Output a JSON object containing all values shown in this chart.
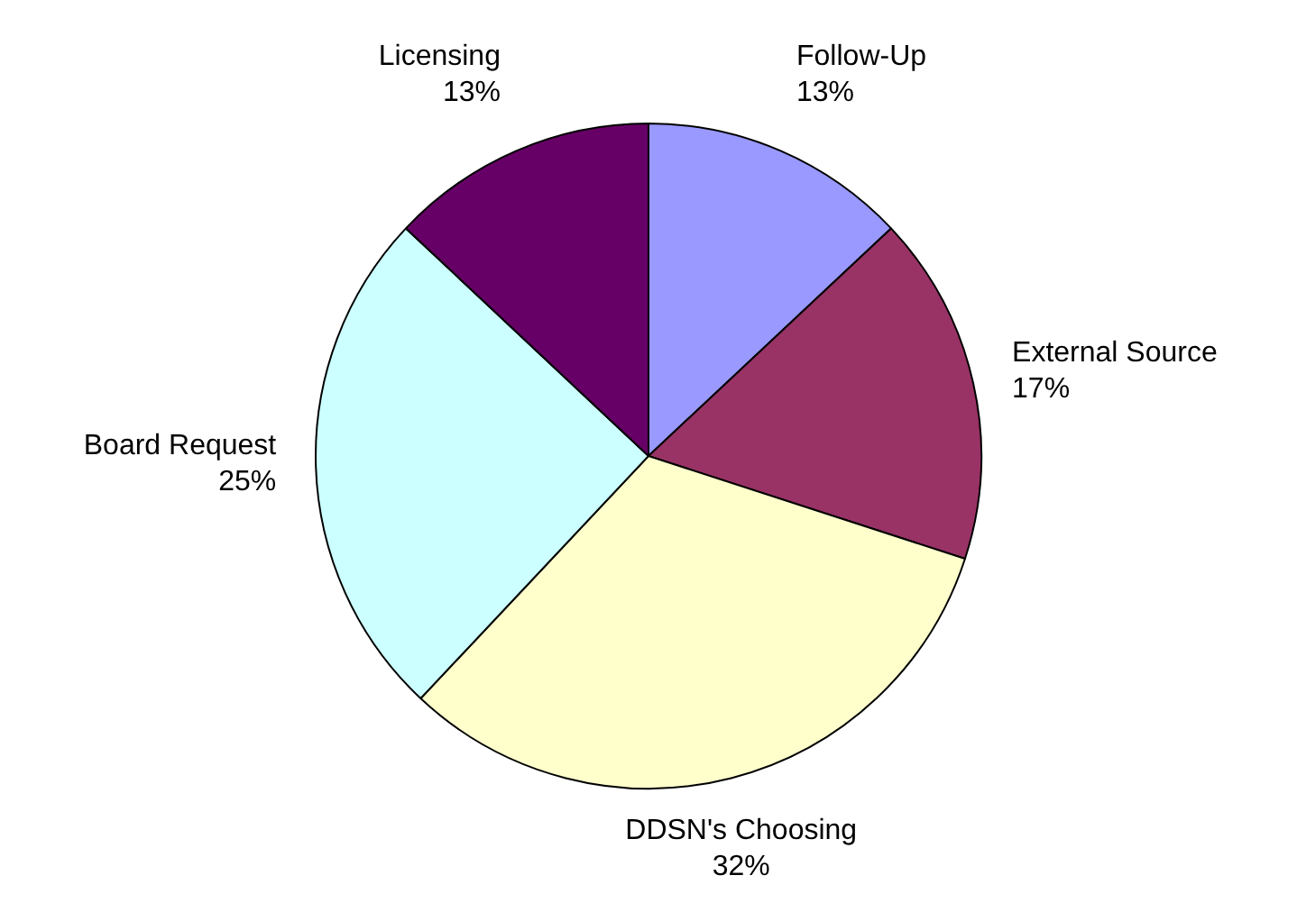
{
  "chart_data": {
    "type": "pie",
    "categories": [
      "Follow-Up",
      "External Source",
      "DDSN's Choosing",
      "Board Request",
      "Licensing"
    ],
    "values": [
      13,
      17,
      32,
      25,
      13
    ],
    "value_labels": [
      "13%",
      "17%",
      "32%",
      "25%",
      "13%"
    ],
    "colors": [
      "#9999ff",
      "#993366",
      "#ffffcc",
      "#ccffff",
      "#660066"
    ],
    "legend": false
  }
}
